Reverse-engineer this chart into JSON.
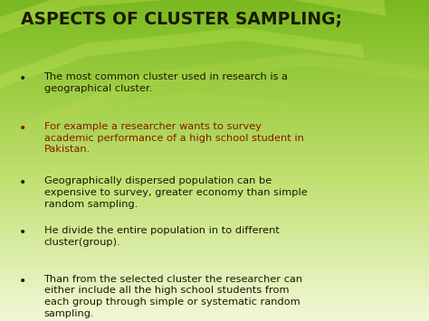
{
  "title": "ASPECTS OF CLUSTER SAMPLING;",
  "title_color": "#1a1a00",
  "title_fontsize": 13.5,
  "bullet_points": [
    {
      "text": "The most common cluster used in research is a\ngeographical cluster.",
      "color": "#1a1a00"
    },
    {
      "text": "For example a researcher wants to survey\nacademic performance of a high school student in\nPakistan.",
      "color": "#8b1500"
    },
    {
      "text": "Geographically dispersed population can be\nexpensive to survey, greater economy than simple\nrandom sampling.",
      "color": "#1a1a00"
    },
    {
      "text": "He divide the entire population in to different\ncluster(group).",
      "color": "#1a1a00"
    },
    {
      "text": "Than from the selected cluster the researcher can\neither include all the high school students from\neach group through simple or systematic random\nsampling.",
      "color": "#1a1a00"
    }
  ],
  "bg_green_dark": "#6aaa10",
  "bg_green_mid": "#8ec830",
  "bg_green_light": "#b8e060",
  "bg_white": "#f0f8e0",
  "figsize": [
    4.74,
    3.55
  ],
  "dpi": 100
}
